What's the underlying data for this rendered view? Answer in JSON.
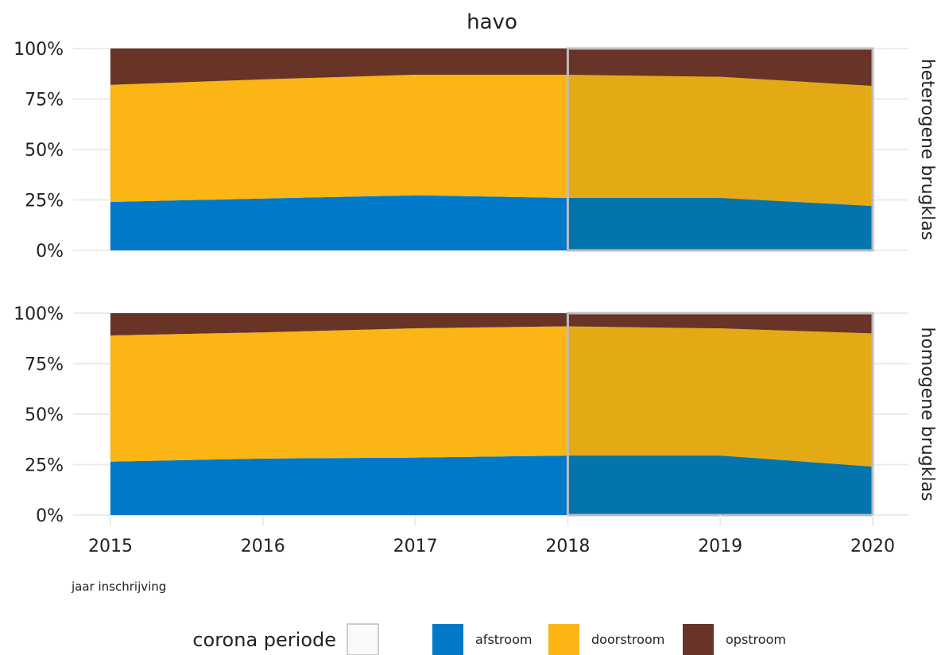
{
  "chart_data": {
    "type": "area",
    "title": "havo",
    "xlabel": "jaar inschrijving",
    "ylabel": "",
    "x": [
      2015,
      2016,
      2017,
      2018,
      2019,
      2020
    ],
    "y_ticks": [
      "0%",
      "25%",
      "50%",
      "75%",
      "100%"
    ],
    "ylim": [
      0,
      100
    ],
    "stacked": true,
    "highlight": {
      "label": "corona periode",
      "x_from": 2018,
      "x_to": 2020
    },
    "panels": [
      {
        "label": "heterogene brugklas",
        "series": [
          {
            "name": "afstroom",
            "values": [
              24,
              25.7,
              27.3,
              26,
              26,
              22
            ]
          },
          {
            "name": "doorstroom",
            "values": [
              58,
              59,
              59.7,
              61,
              60,
              59.5
            ]
          },
          {
            "name": "opstroom",
            "values": [
              18,
              15.3,
              13,
              13,
              14,
              18.5
            ]
          }
        ]
      },
      {
        "label": "homogene brugklas",
        "series": [
          {
            "name": "afstroom",
            "values": [
              26.5,
              28,
              28.5,
              29.5,
              29.5,
              24
            ]
          },
          {
            "name": "doorstroom",
            "values": [
              62.5,
              62.5,
              64,
              64,
              63,
              66
            ]
          },
          {
            "name": "opstroom",
            "values": [
              11,
              9.5,
              7.5,
              6.5,
              7.5,
              10
            ]
          }
        ]
      }
    ],
    "legend": {
      "position": "bottom",
      "corona_label": "corona periode",
      "items": [
        "afstroom",
        "doorstroom",
        "opstroom"
      ]
    },
    "colors": {
      "afstroom": "#0079c8",
      "doorstroom": "#fbb514",
      "opstroom": "#673427",
      "afstroom_corona": "#0474ad",
      "doorstroom_corona": "#e4aa16",
      "opstroom_corona": "#673427",
      "corona_border": "#bdbdbd",
      "grid": "#ebebeb"
    }
  }
}
